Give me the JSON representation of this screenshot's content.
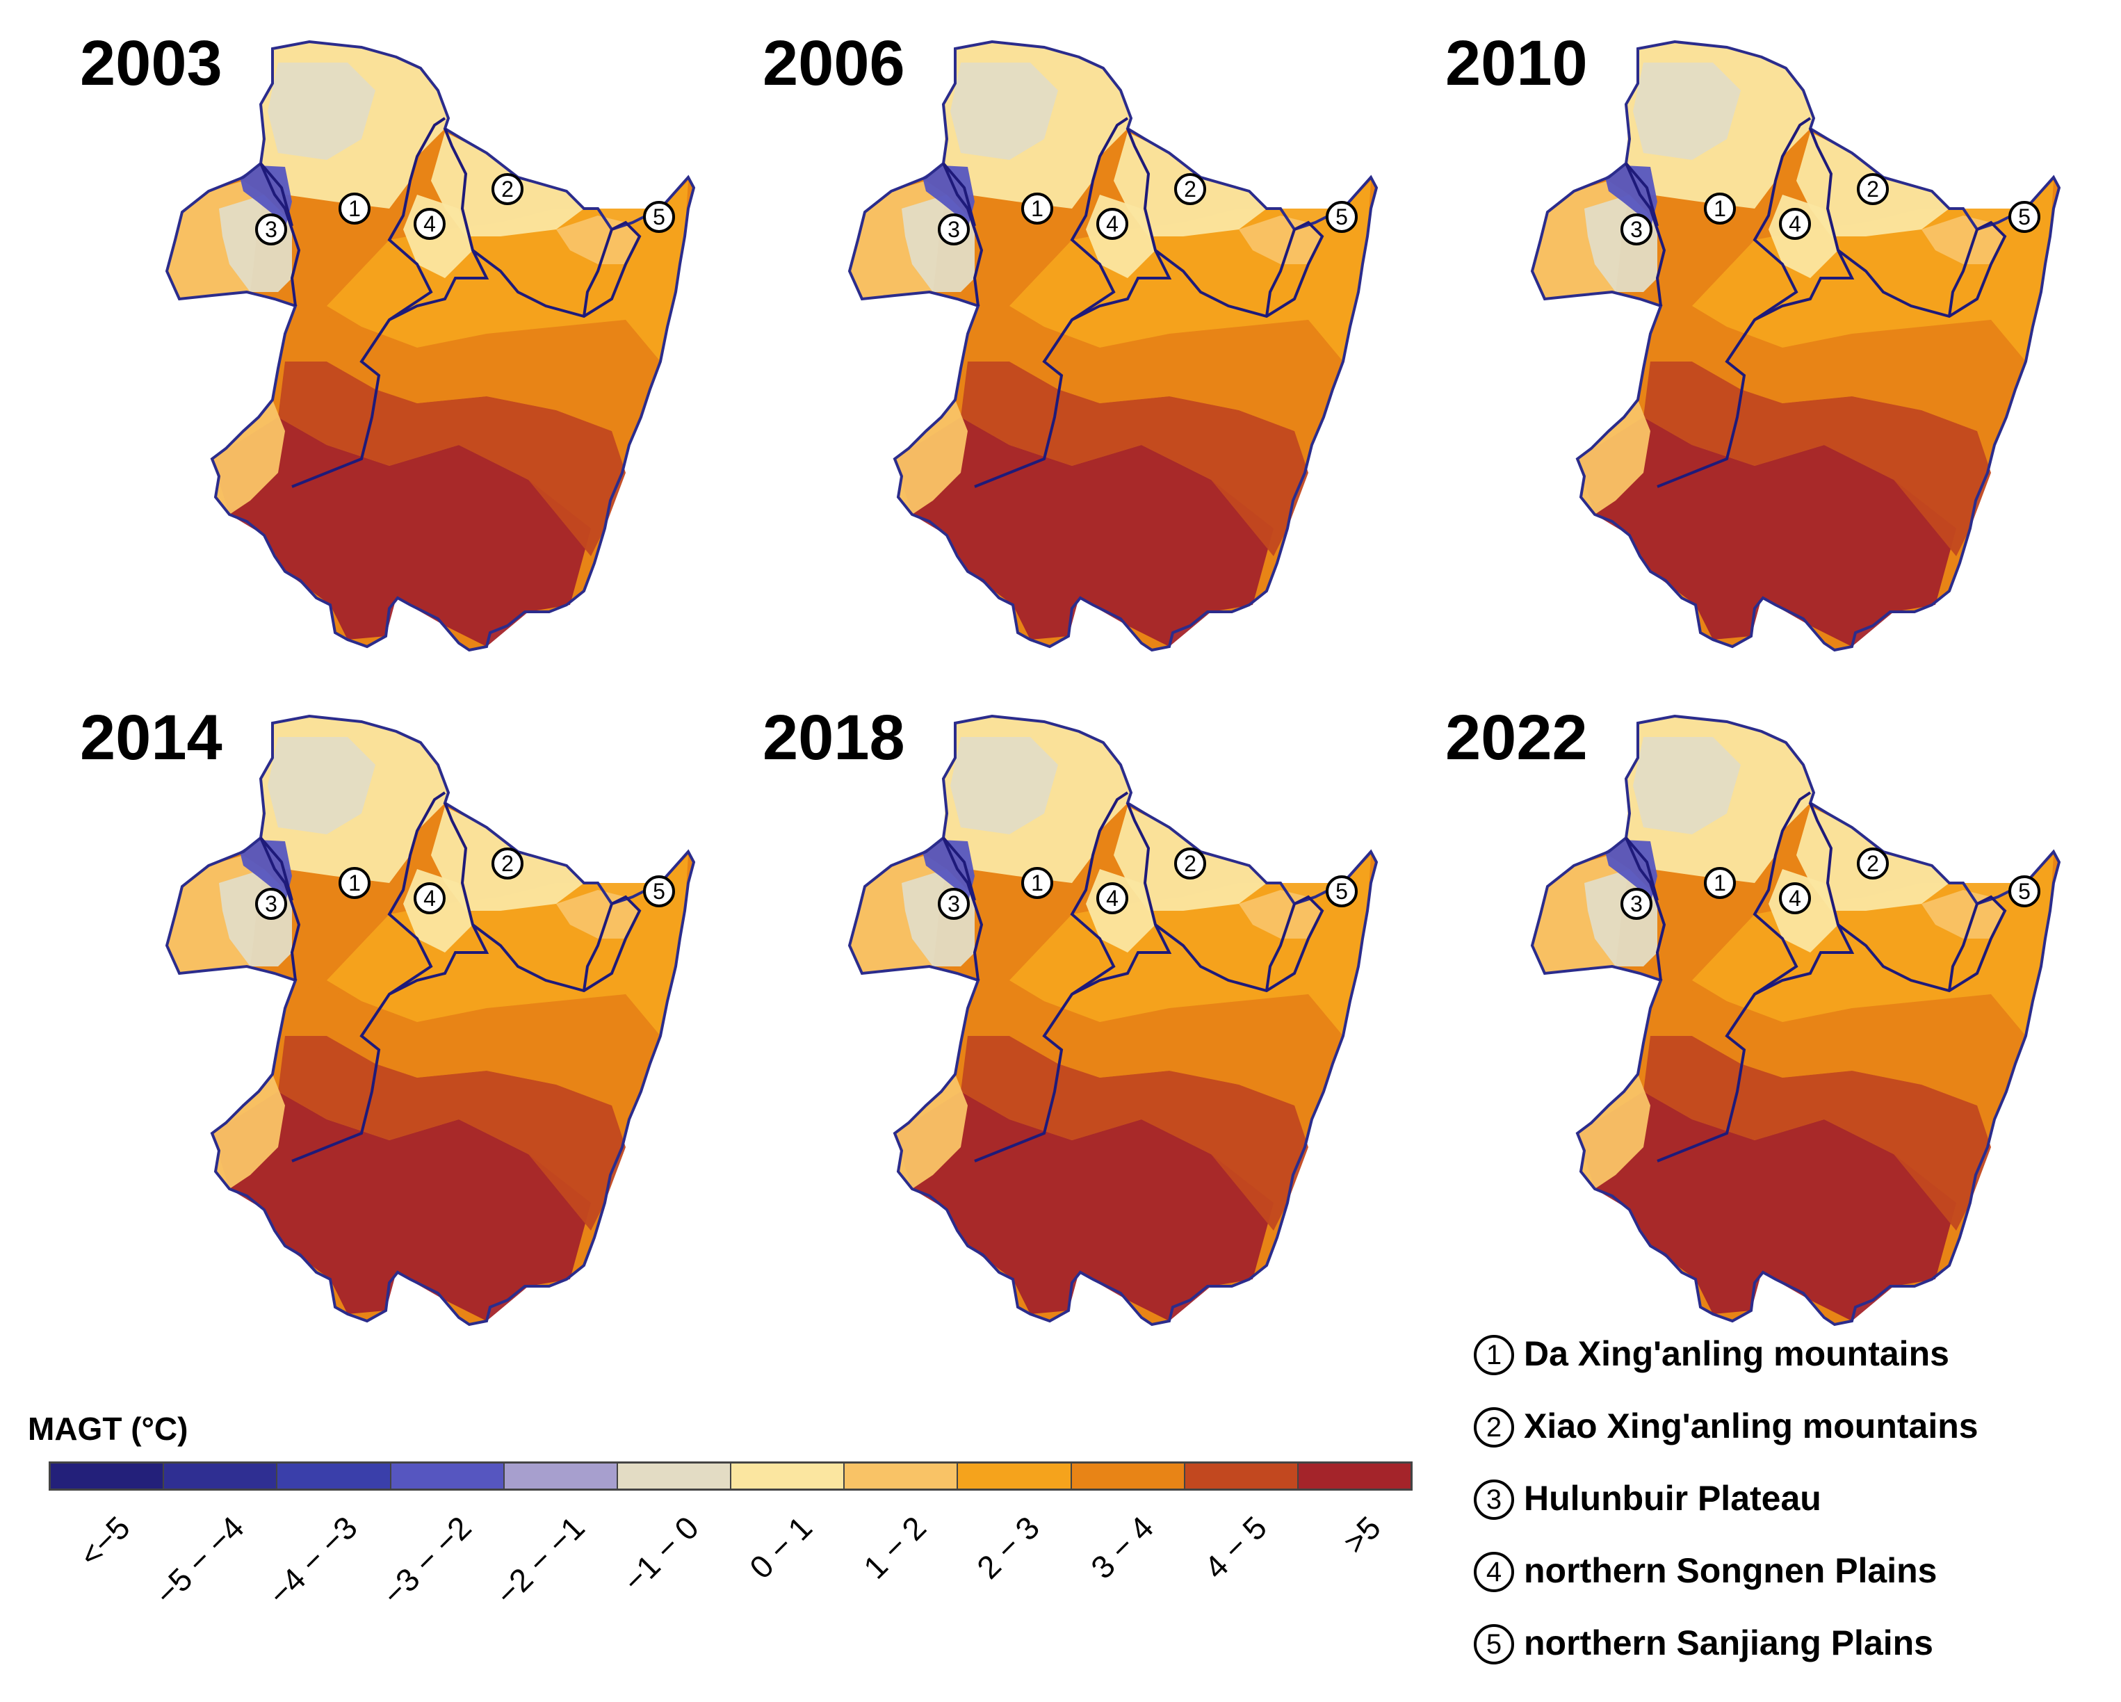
{
  "panels": [
    {
      "year": "2003",
      "regions": [
        "1",
        "2",
        "3",
        "4",
        "5"
      ]
    },
    {
      "year": "2006",
      "regions": [
        "1",
        "2",
        "3",
        "4",
        "5"
      ]
    },
    {
      "year": "2010",
      "regions": [
        "1",
        "2",
        "3",
        "4",
        "5"
      ]
    },
    {
      "year": "2014",
      "regions": [
        "1",
        "2",
        "3",
        "4",
        "5"
      ]
    },
    {
      "year": "2018",
      "regions": [
        "1",
        "2",
        "3",
        "4",
        "5"
      ]
    },
    {
      "year": "2022",
      "regions": [
        "1",
        "2",
        "3",
        "4",
        "5"
      ]
    }
  ],
  "legend": {
    "items": [
      {
        "num": "1",
        "name": "Da Xing'anling mountains"
      },
      {
        "num": "2",
        "name": "Xiao Xing'anling mountains"
      },
      {
        "num": "3",
        "name": "Hulunbuir Plateau"
      },
      {
        "num": "4",
        "name": "northern Songnen Plains"
      },
      {
        "num": "5",
        "name": "northern Sanjiang Plains"
      }
    ]
  },
  "colorbar": {
    "title": "MAGT (°C)",
    "classes": [
      {
        "label": "<−5",
        "color": "#23207a"
      },
      {
        "label": "−5 − −4",
        "color": "#2f2f92"
      },
      {
        "label": "−4 − −3",
        "color": "#3a3faa"
      },
      {
        "label": "−3 − −2",
        "color": "#5656c0"
      },
      {
        "label": "−2 − −1",
        "color": "#a79fce"
      },
      {
        "label": "−1 − 0",
        "color": "#e3dcc4"
      },
      {
        "label": "0 − 1",
        "color": "#fbe6a0"
      },
      {
        "label": "1 − 2",
        "color": "#f9c366"
      },
      {
        "label": "2 − 3",
        "color": "#f5a31c"
      },
      {
        "label": "3 − 4",
        "color": "#e88416"
      },
      {
        "label": "4 − 5",
        "color": "#c2481f"
      },
      {
        "label": ">5",
        "color": "#a4242a"
      }
    ]
  },
  "colors": {
    "boundary": "#2b2c8c"
  }
}
